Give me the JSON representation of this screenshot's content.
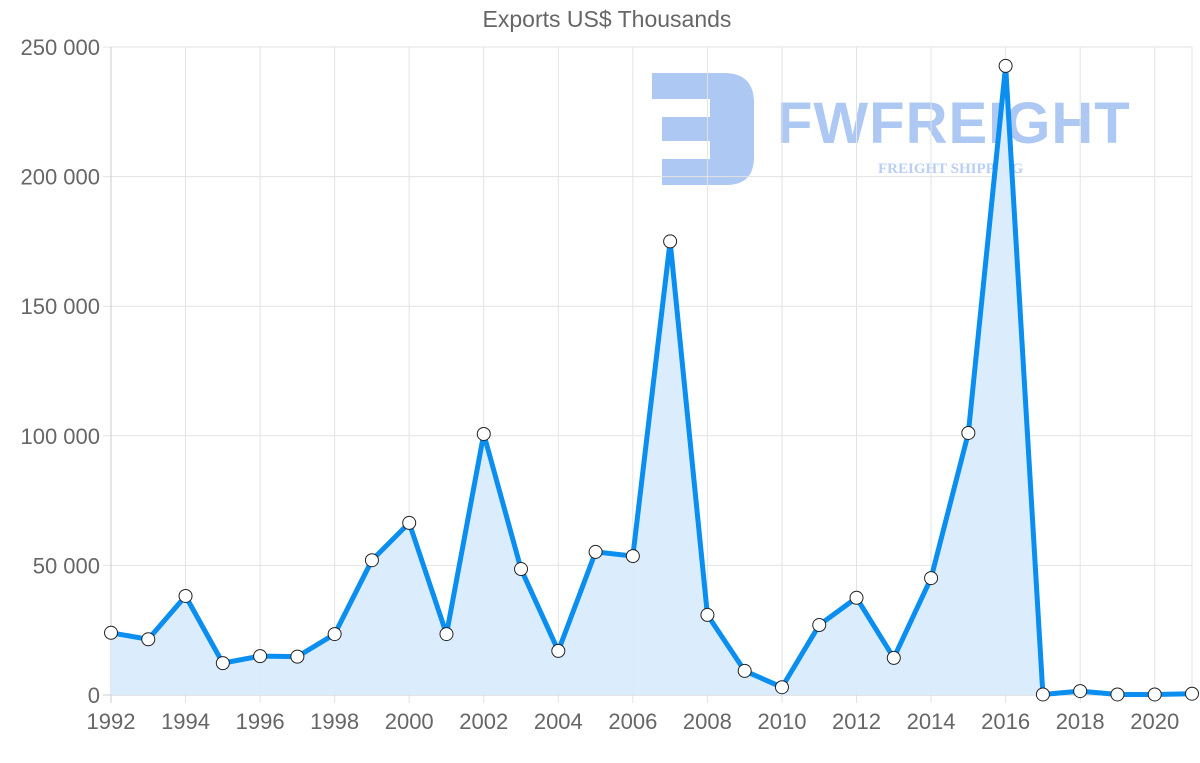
{
  "chart_data": {
    "type": "line",
    "title": "Exports US$ Thousands",
    "xlabel": "",
    "ylabel": "",
    "x": [
      1992,
      1993,
      1994,
      1995,
      1996,
      1997,
      1998,
      1999,
      2000,
      2001,
      2002,
      2003,
      2004,
      2005,
      2006,
      2007,
      2008,
      2009,
      2010,
      2011,
      2012,
      2013,
      2014,
      2015,
      2016,
      2017,
      2018,
      2019,
      2020,
      2021
    ],
    "series": [
      {
        "name": "Exports US$ Thousands",
        "values": [
          24000,
          21500,
          38200,
          12300,
          15000,
          14800,
          23500,
          52000,
          66400,
          23500,
          100700,
          48600,
          17000,
          55200,
          53600,
          175000,
          30900,
          9300,
          3000,
          27000,
          37500,
          14300,
          45100,
          101100,
          242700,
          200,
          1500,
          200,
          200,
          500
        ]
      }
    ],
    "ylim": [
      0,
      250000
    ],
    "yticks": [
      0,
      50000,
      100000,
      150000,
      200000,
      250000
    ],
    "ytick_labels": [
      "0",
      "50 000",
      "100 000",
      "150 000",
      "200 000",
      "250 000"
    ],
    "xtick_labels": [
      "1992",
      "1994",
      "1996",
      "1998",
      "2000",
      "2002",
      "2004",
      "2006",
      "2008",
      "2010",
      "2012",
      "2014",
      "2016",
      "2018",
      "2020"
    ],
    "grid": true,
    "legend": "none",
    "fill": "area under line (light blue)",
    "colors": {
      "line": "#0a8ef0",
      "fill": "#d9ecfc",
      "grid": "#e3e3e3",
      "axis_text": "#666666",
      "marker_fill": "#ffffff",
      "marker_stroke": "#222222"
    }
  },
  "watermark": {
    "brand": "FWFREIGHT",
    "tagline": "FREIGHT SHIPPING"
  }
}
